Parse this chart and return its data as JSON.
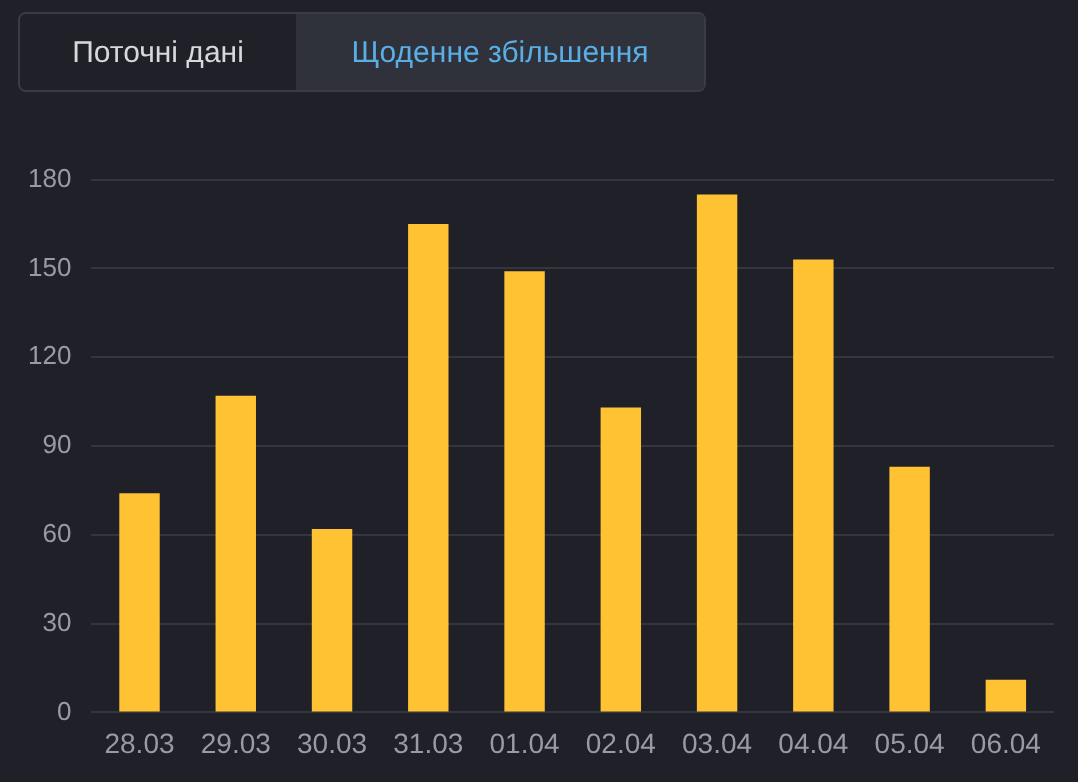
{
  "chart_data": {
    "type": "bar",
    "annotations": [
      "Поточні дані",
      "Щоденне збільшення"
    ],
    "categories": [
      "28.03",
      "29.03",
      "30.03",
      "31.03",
      "01.04",
      "02.04",
      "03.04",
      "04.04",
      "05.04",
      "06.04"
    ],
    "values": [
      74,
      107,
      62,
      165,
      149,
      103,
      175,
      153,
      83,
      11
    ],
    "color": "#ffc233",
    "ylim": [
      0,
      180
    ],
    "yticks": [
      0,
      30,
      60,
      90,
      120,
      150,
      180
    ],
    "grid": "y",
    "legend": false
  }
}
